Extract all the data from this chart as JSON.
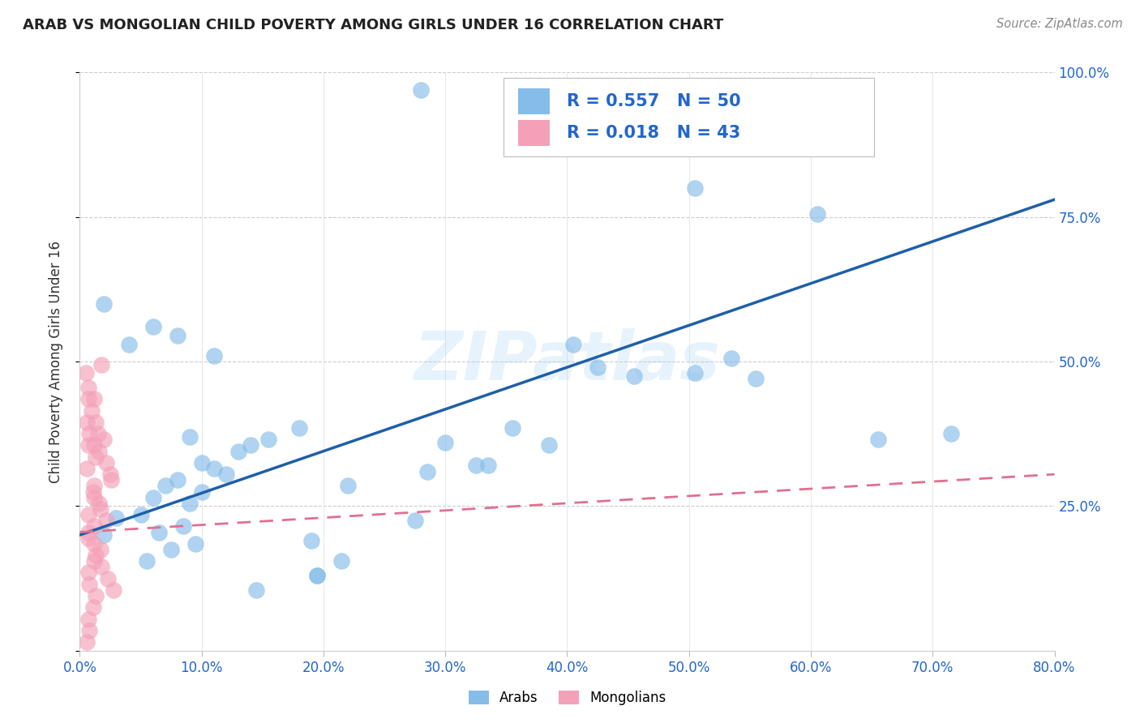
{
  "title": "ARAB VS MONGOLIAN CHILD POVERTY AMONG GIRLS UNDER 16 CORRELATION CHART",
  "source": "Source: ZipAtlas.com",
  "ylabel": "Child Poverty Among Girls Under 16",
  "xlim": [
    0.0,
    0.8
  ],
  "ylim": [
    0.0,
    1.0
  ],
  "x_ticks": [
    0.0,
    0.1,
    0.2,
    0.3,
    0.4,
    0.5,
    0.6,
    0.7,
    0.8
  ],
  "x_tick_labels": [
    "0.0%",
    "10.0%",
    "20.0%",
    "30.0%",
    "40.0%",
    "50.0%",
    "60.0%",
    "70.0%",
    "80.0%"
  ],
  "y_ticks": [
    0.25,
    0.5,
    0.75,
    1.0
  ],
  "y_tick_labels": [
    "25.0%",
    "50.0%",
    "75.0%",
    "100.0%"
  ],
  "arab_R": "0.557",
  "arab_N": "50",
  "mongol_R": "0.018",
  "mongol_N": "43",
  "watermark": "ZIPatlas",
  "arab_color": "#85bce8",
  "mongol_color": "#f4a0b8",
  "arab_line_color": "#1e5fa8",
  "mongol_line_color": "#e07090",
  "arab_label": "Arabs",
  "mongol_label": "Mongolians",
  "arab_line_x0": 0.0,
  "arab_line_y0": 0.2,
  "arab_line_x1": 0.8,
  "arab_line_y1": 0.78,
  "mongol_line_x0": 0.0,
  "mongol_line_y0": 0.205,
  "mongol_line_x1": 0.8,
  "mongol_line_y1": 0.305,
  "arab_x": [
    0.28,
    0.02,
    0.04,
    0.06,
    0.07,
    0.05,
    0.08,
    0.1,
    0.09,
    0.11,
    0.12,
    0.13,
    0.1,
    0.155,
    0.18,
    0.06,
    0.08,
    0.11,
    0.14,
    0.09,
    0.085,
    0.065,
    0.095,
    0.075,
    0.055,
    0.3,
    0.355,
    0.405,
    0.425,
    0.455,
    0.385,
    0.325,
    0.285,
    0.505,
    0.555,
    0.605,
    0.655,
    0.715,
    0.505,
    0.535,
    0.335,
    0.215,
    0.19,
    0.195,
    0.22,
    0.195,
    0.145,
    0.275,
    0.03,
    0.02
  ],
  "arab_y": [
    0.97,
    0.6,
    0.53,
    0.265,
    0.285,
    0.235,
    0.295,
    0.275,
    0.255,
    0.315,
    0.305,
    0.345,
    0.325,
    0.365,
    0.385,
    0.56,
    0.545,
    0.51,
    0.355,
    0.37,
    0.215,
    0.205,
    0.185,
    0.175,
    0.155,
    0.36,
    0.385,
    0.53,
    0.49,
    0.475,
    0.355,
    0.32,
    0.31,
    0.48,
    0.47,
    0.755,
    0.365,
    0.375,
    0.8,
    0.505,
    0.32,
    0.155,
    0.19,
    0.13,
    0.285,
    0.13,
    0.105,
    0.225,
    0.23,
    0.2
  ],
  "mongol_x": [
    0.005,
    0.006,
    0.01,
    0.012,
    0.015,
    0.016,
    0.02,
    0.022,
    0.025,
    0.026,
    0.006,
    0.011,
    0.016,
    0.007,
    0.012,
    0.007,
    0.017,
    0.012,
    0.007,
    0.008,
    0.012,
    0.017,
    0.022,
    0.007,
    0.012,
    0.013,
    0.018,
    0.023,
    0.028,
    0.013,
    0.007,
    0.013,
    0.011,
    0.007,
    0.008,
    0.012,
    0.007,
    0.018,
    0.007,
    0.012,
    0.013,
    0.008,
    0.006
  ],
  "mongol_y": [
    0.48,
    0.395,
    0.415,
    0.435,
    0.375,
    0.345,
    0.365,
    0.325,
    0.305,
    0.295,
    0.315,
    0.275,
    0.255,
    0.235,
    0.215,
    0.195,
    0.175,
    0.155,
    0.135,
    0.115,
    0.265,
    0.245,
    0.225,
    0.205,
    0.185,
    0.165,
    0.145,
    0.125,
    0.105,
    0.095,
    0.355,
    0.335,
    0.075,
    0.055,
    0.035,
    0.285,
    0.455,
    0.495,
    0.435,
    0.355,
    0.395,
    0.375,
    0.015
  ]
}
